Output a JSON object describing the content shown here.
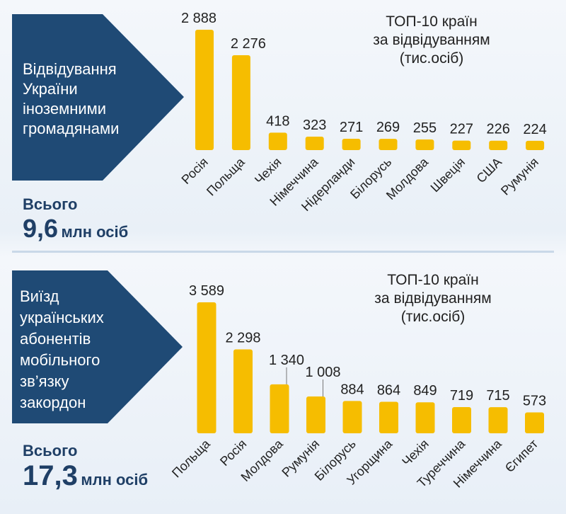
{
  "colors": {
    "panel": "#1f4a75",
    "bar": "#f6bd00",
    "total": "#1f3f66"
  },
  "chart_data": [
    {
      "type": "bar",
      "panel_text": [
        "Відвідування",
        "України",
        "іноземними",
        "громадянами"
      ],
      "title": [
        "ТОП-10 країн",
        "за відвідуванням",
        "(тис.осіб)"
      ],
      "total_label": "Всього",
      "total_value": "9,6",
      "total_unit": "млн осіб",
      "categories": [
        "Росія",
        "Польща",
        "Чехія",
        "Німеччина",
        "Нідерланди",
        "Білорусь",
        "Молдова",
        "Швеція",
        "США",
        "Румунія"
      ],
      "values": [
        2888,
        2276,
        418,
        323,
        271,
        269,
        255,
        227,
        226,
        224
      ],
      "value_labels": [
        "2 888",
        "2 276",
        "418",
        "323",
        "271",
        "269",
        "255",
        "227",
        "226",
        "224"
      ]
    },
    {
      "type": "bar",
      "panel_text": [
        "Виїзд",
        "українських",
        "абонентів",
        "мобільного",
        "зв’язку",
        "закордон"
      ],
      "title": [
        "ТОП-10 країн",
        "за відвідуванням",
        "(тис.осіб)"
      ],
      "total_label": "Всього",
      "total_value": "17,3",
      "total_unit": "млн осіб",
      "categories": [
        "Польща",
        "Росія",
        "Молдова",
        "Румунія",
        "Білорусь",
        "Угорщина",
        "Чехія",
        "Туреччина",
        "Німеччина",
        "Єгипет"
      ],
      "values": [
        3589,
        2298,
        1340,
        1008,
        884,
        864,
        849,
        719,
        715,
        573
      ],
      "value_labels": [
        "3 589",
        "2 298",
        "1 340",
        "1 008",
        "884",
        "864",
        "849",
        "719",
        "715",
        "573"
      ]
    }
  ]
}
